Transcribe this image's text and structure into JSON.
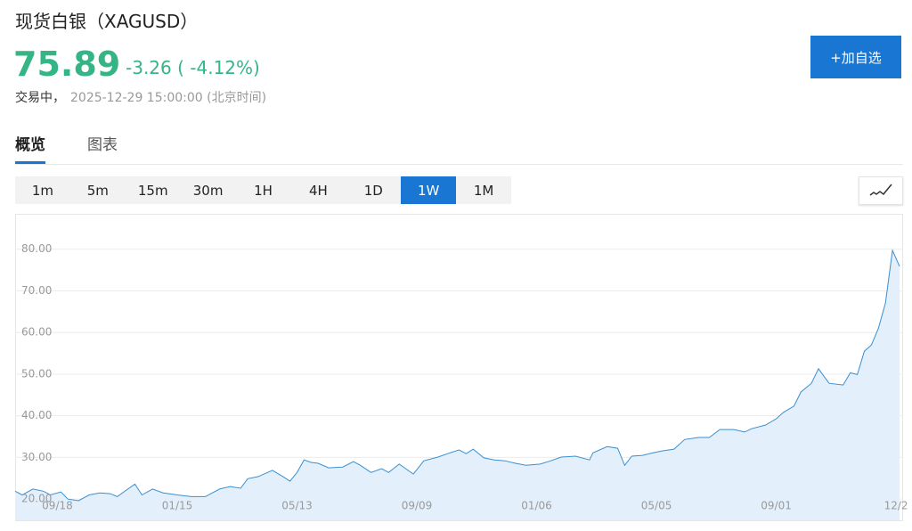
{
  "header": {
    "title": "现货白银（XAGUSD）",
    "price": "75.89",
    "change": "-3.26 ( -4.12%)",
    "status": "交易中，",
    "timestamp": "2025-12-29 15:00:00 (北京时间)",
    "add_button": "+加自选"
  },
  "tabs": {
    "items": [
      "概览",
      "图表"
    ],
    "active": 0
  },
  "periods": {
    "items": [
      "1m",
      "5m",
      "15m",
      "30m",
      "1H",
      "4H",
      "1D",
      "1W",
      "1M"
    ],
    "active": 7
  },
  "chart_data": {
    "type": "area",
    "color": "#3a8fd0",
    "fill": "#e3f0fc",
    "grid": true,
    "x": [
      0,
      1,
      2.5,
      4,
      5,
      6.5,
      7.5,
      9,
      10.5,
      12,
      13.5,
      14.5,
      16,
      17,
      18,
      19.5,
      21,
      23,
      25,
      27,
      29,
      30.5,
      32,
      33,
      34.5,
      36.5,
      38,
      39,
      40,
      41,
      42,
      43,
      44.5,
      46.5,
      48,
      49,
      50.5,
      52,
      53,
      54.5,
      56.5,
      58,
      60,
      61.5,
      63,
      64,
      65,
      66.5,
      68,
      69.5,
      71,
      72.5,
      74.5,
      76,
      77.5,
      79.5,
      81.5,
      82,
      84,
      85.5,
      86.5,
      87.5,
      89,
      90.5,
      92,
      93.5,
      95,
      97,
      98.5,
      100,
      102,
      103.5,
      104.5,
      106.5,
      108,
      109,
      110.5,
      111.5,
      113,
      114,
      115.5,
      117.5,
      118.5,
      119.5,
      120.5,
      121.5,
      122.5,
      123.5,
      124.5,
      125.5
    ],
    "values": [
      21.9,
      21,
      22.4,
      21.9,
      21,
      21.7,
      20,
      19.6,
      21,
      21.5,
      21.3,
      20.6,
      22.4,
      23.6,
      21,
      22.4,
      21.5,
      21,
      20.6,
      20.6,
      22.4,
      23,
      22.6,
      24.9,
      25.4,
      26.9,
      25.4,
      24.3,
      26.4,
      29.4,
      28.8,
      28.6,
      27.5,
      27.7,
      29,
      28.1,
      26.4,
      27.3,
      26.4,
      28.4,
      26,
      29.2,
      30.1,
      31,
      31.8,
      30.9,
      32,
      29.9,
      29.4,
      29.2,
      28.6,
      28.1,
      28.4,
      29.2,
      30.1,
      30.3,
      29.4,
      31.1,
      32.6,
      32.2,
      28.1,
      30.3,
      30.5,
      31.1,
      31.6,
      32,
      34.3,
      34.8,
      34.8,
      36.7,
      36.7,
      36.1,
      36.9,
      37.8,
      39.3,
      40.8,
      42.3,
      45.7,
      47.8,
      51.3,
      47.8,
      47.4,
      50.3,
      49.9,
      55.5,
      57,
      61,
      67.1,
      79.7,
      75.9
    ],
    "xlim": [
      0,
      126
    ],
    "xticks": [
      {
        "value": 6,
        "label": "09/18"
      },
      {
        "value": 23,
        "label": "01/15"
      },
      {
        "value": 40,
        "label": "05/13"
      },
      {
        "value": 57,
        "label": "09/09"
      },
      {
        "value": 74,
        "label": "01/06"
      },
      {
        "value": 91,
        "label": "05/05"
      },
      {
        "value": 108,
        "label": "09/01"
      },
      {
        "value": 125,
        "label": "12/2"
      }
    ],
    "ylim": [
      14.9,
      88.5
    ],
    "yticks": [
      {
        "value": 20,
        "label": "20.00"
      },
      {
        "value": 30,
        "label": "30.00"
      },
      {
        "value": 40,
        "label": "40.00"
      },
      {
        "value": 50,
        "label": "50.00"
      },
      {
        "value": 60,
        "label": "60.00"
      },
      {
        "value": 70,
        "label": "70.00"
      },
      {
        "value": 80,
        "label": "80.00"
      }
    ]
  }
}
